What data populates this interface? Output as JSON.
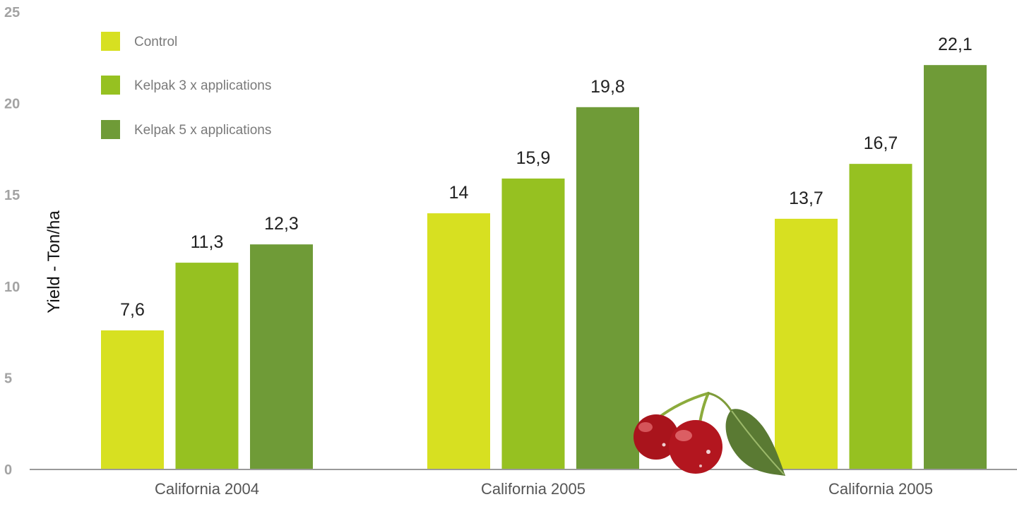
{
  "chart_data": {
    "type": "bar",
    "title": "",
    "xlabel": "",
    "ylabel": "Yield - Ton/ha",
    "ylim": [
      0,
      25
    ],
    "yticks": [
      "0",
      "5",
      "10",
      "15",
      "20",
      "25"
    ],
    "categories": [
      "California 2004",
      "California 2005",
      "California 2005"
    ],
    "series": [
      {
        "name": "Control",
        "color": "#d7e021",
        "values": [
          7.6,
          14,
          13.7
        ],
        "labels": [
          "7,6",
          "14",
          "13,7"
        ]
      },
      {
        "name": "Kelpak 3 x applications",
        "color": "#96c121",
        "values": [
          11.3,
          15.9,
          16.7
        ],
        "labels": [
          "11,3",
          "15,9",
          "16,7"
        ]
      },
      {
        "name": "Kelpak 5 x applications",
        "color": "#6f9b37",
        "values": [
          12.3,
          19.8,
          22.1
        ],
        "labels": [
          "12,3",
          "19,8",
          "22,1"
        ]
      }
    ],
    "legend_position": "top-left",
    "grid": false
  },
  "decoration": {
    "image": "cherries-with-leaf"
  }
}
